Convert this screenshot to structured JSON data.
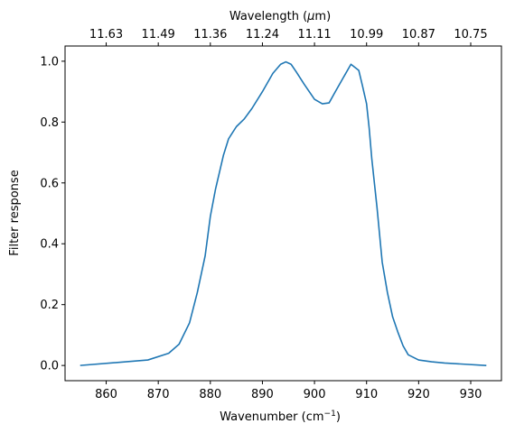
{
  "chart_data": {
    "type": "line",
    "xlabel": "Wavenumber (cm",
    "xlabel_sup": "−1",
    "xlabel_tail": ")",
    "ylabel": "Filter response",
    "top_xlabel": "Wavelength (",
    "top_xlabel_mu": "μ",
    "top_xlabel_tail": "m)",
    "xlim": [
      852.1,
      935.9
    ],
    "ylim": [
      -0.05,
      1.05
    ],
    "x_ticks": [
      860,
      870,
      880,
      890,
      900,
      910,
      920,
      930
    ],
    "y_ticks": [
      0.0,
      0.2,
      0.4,
      0.6,
      0.8,
      1.0
    ],
    "y_tick_labels": [
      "0.0",
      "0.2",
      "0.4",
      "0.6",
      "0.8",
      "1.0"
    ],
    "top_ticks": [
      "11.63",
      "11.49",
      "11.36",
      "11.24",
      "11.11",
      "10.99",
      "10.87",
      "10.75"
    ],
    "line_color": "#1f77b4",
    "grid": false,
    "series": [
      {
        "x": [
          855,
          868,
          872,
          874,
          876,
          877.5,
          879,
          880,
          881,
          882.5,
          883.5,
          885,
          886.5,
          888,
          890,
          892,
          893.5,
          894.5,
          895.5,
          896.5,
          898,
          900,
          901.5,
          902.8,
          904,
          905.5,
          907,
          908.5,
          909.2,
          910,
          910.5,
          911,
          912,
          913,
          914,
          915,
          916,
          917,
          918,
          920,
          922.5,
          925,
          933
        ],
        "y": [
          0.0,
          0.018,
          0.04,
          0.07,
          0.14,
          0.24,
          0.36,
          0.49,
          0.58,
          0.69,
          0.745,
          0.785,
          0.81,
          0.845,
          0.9,
          0.96,
          0.99,
          0.998,
          0.99,
          0.965,
          0.925,
          0.875,
          0.86,
          0.863,
          0.9,
          0.945,
          0.99,
          0.97,
          0.92,
          0.86,
          0.78,
          0.68,
          0.52,
          0.34,
          0.24,
          0.16,
          0.11,
          0.065,
          0.035,
          0.018,
          0.012,
          0.008,
          0.0
        ]
      }
    ]
  }
}
